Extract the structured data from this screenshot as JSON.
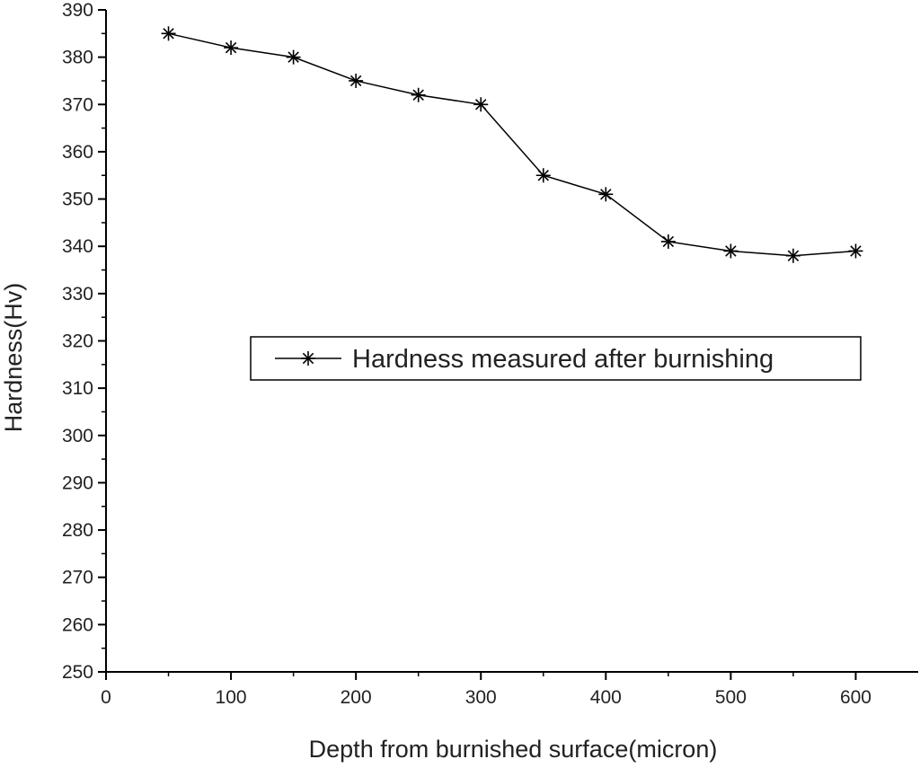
{
  "chart_data": {
    "type": "line",
    "title": "",
    "xlabel": "Depth from burnished surface(micron)",
    "ylabel": "Hardness(Hv)",
    "xlim": [
      0,
      650
    ],
    "ylim": [
      250,
      390
    ],
    "x_ticks": [
      0,
      100,
      200,
      300,
      400,
      500,
      600
    ],
    "y_ticks": [
      250,
      260,
      270,
      280,
      290,
      300,
      310,
      320,
      330,
      340,
      350,
      360,
      370,
      380,
      390
    ],
    "grid": false,
    "legend_position": "center-right",
    "series": [
      {
        "name": "Hardness measured after burnishing",
        "marker": "asterisk",
        "color": "#000000",
        "x": [
          50,
          100,
          150,
          200,
          250,
          300,
          350,
          400,
          450,
          500,
          550,
          600
        ],
        "y": [
          385,
          382,
          380,
          375,
          372,
          370,
          355,
          351,
          341,
          339,
          338,
          339
        ]
      }
    ]
  }
}
